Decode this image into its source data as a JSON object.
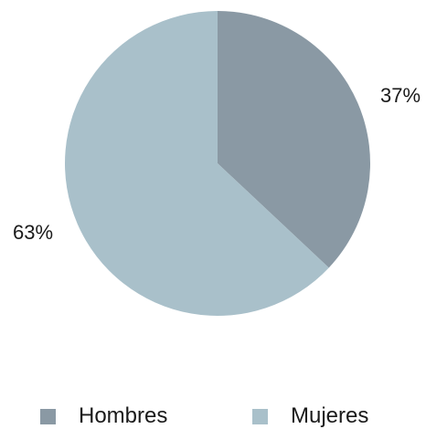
{
  "chart_data": {
    "type": "pie",
    "categories": [
      "Hombres",
      "Mujeres"
    ],
    "values": [
      37,
      63
    ],
    "labels": [
      "37%",
      "63%"
    ],
    "colors": [
      "#8a99a4",
      "#a9c0ca"
    ],
    "legend_position": "bottom"
  }
}
